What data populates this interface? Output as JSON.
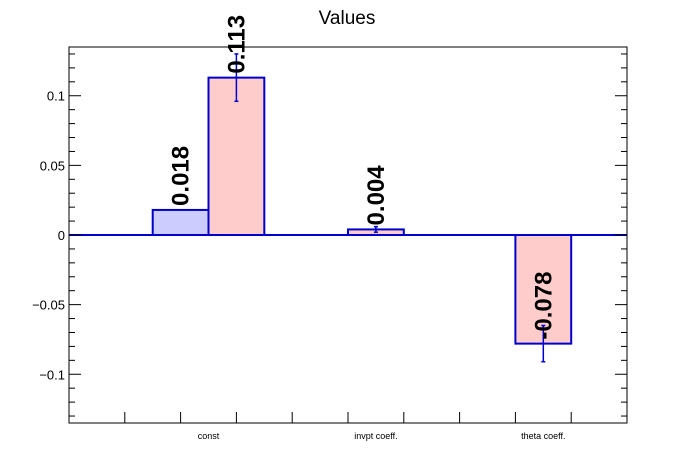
{
  "chart_data": {
    "type": "bar",
    "title": "Values",
    "xlabel": "",
    "ylabel": "",
    "categories": [
      "const",
      "invpt coeff.",
      "theta coeff."
    ],
    "ylim": [
      -0.135,
      0.135
    ],
    "yticks": [
      -0.1,
      -0.05,
      0,
      0.05,
      0.1
    ],
    "ytick_labels": [
      "−0.1",
      "−0.05",
      "0",
      "0.05",
      "0.1"
    ],
    "grid": false,
    "legend": "none",
    "series": [
      {
        "color": "#ccccff",
        "edge": "#0000cc",
        "values": [
          0.018,
          null,
          null
        ],
        "errors": [
          null,
          null,
          null
        ],
        "labels": [
          "0.018",
          null,
          null
        ]
      },
      {
        "color": "#ffcccc",
        "edge": "#0000cc",
        "values": [
          0.113,
          0.004,
          -0.078
        ],
        "errors": [
          0.017,
          0.002,
          0.013
        ],
        "labels": [
          "0.113",
          "0.004",
          "-0.078"
        ]
      }
    ]
  }
}
